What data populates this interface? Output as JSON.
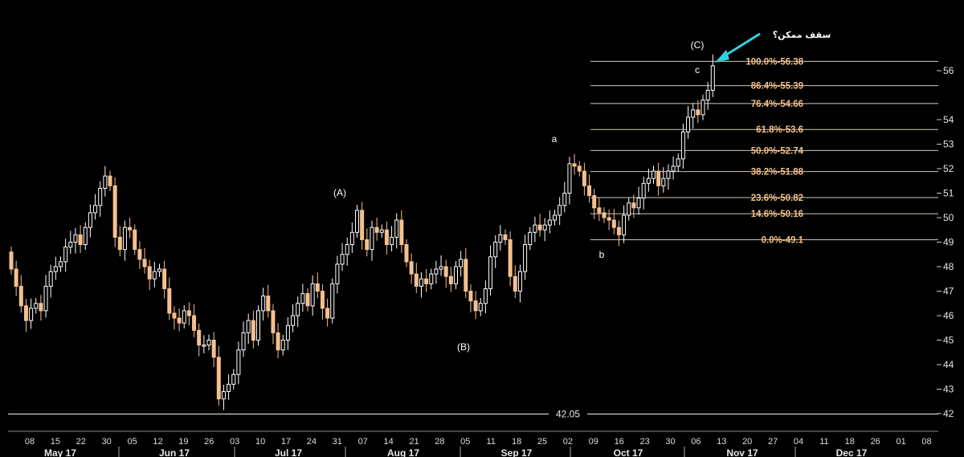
{
  "chart_data": {
    "type": "candlestick",
    "y_axis": {
      "ylim": [
        41.7,
        56.9
      ],
      "ticks": [
        42,
        43,
        44,
        45,
        46,
        47,
        48,
        49,
        50,
        51,
        52,
        53,
        54,
        56
      ],
      "side": "right"
    },
    "x_axis": {
      "day_ticks": [
        "08",
        "15",
        "22",
        "30",
        "05",
        "12",
        "19",
        "26",
        "03",
        "10",
        "17",
        "24",
        "31",
        "07",
        "14",
        "21",
        "28",
        "05",
        "11",
        "18",
        "25",
        "02",
        "09",
        "16",
        "23",
        "30",
        "06",
        "13",
        "20",
        "27",
        "04",
        "11",
        "18",
        "26",
        "01",
        "08"
      ],
      "months": [
        "May 17",
        "Jun 17",
        "Jul 17",
        "Aug 17",
        "Sep 17",
        "Oct 17",
        "Nov 17",
        "Dec 17"
      ]
    },
    "fibonacci_levels": [
      {
        "pct": "100.0%",
        "value": 56.38
      },
      {
        "pct": "86.4%",
        "value": 55.39
      },
      {
        "pct": "76.4%",
        "value": 54.66
      },
      {
        "pct": "61.8%",
        "value": 53.6
      },
      {
        "pct": "50.0%",
        "value": 52.74
      },
      {
        "pct": "38.2%",
        "value": 51.88
      },
      {
        "pct": "23.6%",
        "value": 50.82
      },
      {
        "pct": "14.6%",
        "value": 50.16
      },
      {
        "pct": "0.0%",
        "value": 49.1
      }
    ],
    "horizontal_line": {
      "value": 42.05,
      "label": "42.05"
    },
    "annotations": [
      "(A)",
      "(B)",
      "(C)",
      "a",
      "b",
      "c"
    ],
    "note": "سقف ممکن؟",
    "closes": [
      47.9,
      47.2,
      46.4,
      45.8,
      46.3,
      46.5,
      46.2,
      47.2,
      47.8,
      48.0,
      48.2,
      48.8,
      49.0,
      49.3,
      48.9,
      49.6,
      50.2,
      50.5,
      51.2,
      51.7,
      51.3,
      49.2,
      48.7,
      49.6,
      49.5,
      48.7,
      48.3,
      48.0,
      47.5,
      47.8,
      47.9,
      47.1,
      46.1,
      45.9,
      45.7,
      46.2,
      46.0,
      45.4,
      44.8,
      44.8,
      45.0,
      44.3,
      42.6,
      42.9,
      43.2,
      43.6,
      44.6,
      45.3,
      45.8,
      45.0,
      46.2,
      46.8,
      46.2,
      45.3,
      44.6,
      45.0,
      45.6,
      46.0,
      46.5,
      46.9,
      46.4,
      47.3,
      47.0,
      46.3,
      45.9,
      47.3,
      48.1,
      48.5,
      48.9,
      49.4,
      50.3,
      49.1,
      48.7,
      49.6,
      49.4,
      49.5,
      48.9,
      49.2,
      49.9,
      48.9,
      48.2,
      47.7,
      47.2,
      47.5,
      47.3,
      47.7,
      47.9,
      48.0,
      47.6,
      47.3,
      48.0,
      48.3,
      47.0,
      46.6,
      46.2,
      46.5,
      47.1,
      48.4,
      49.0,
      49.3,
      49.1,
      47.6,
      47.0,
      47.8,
      48.9,
      49.4,
      49.7,
      49.5,
      49.7,
      49.9,
      50.1,
      50.5,
      51.0,
      52.2,
      52.1,
      51.9,
      51.3,
      50.9,
      50.4,
      50.2,
      50.0,
      49.9,
      49.6,
      49.3,
      50.1,
      50.6,
      50.4,
      50.8,
      51.4,
      51.6,
      51.9,
      51.3,
      51.6,
      51.9,
      52.1,
      52.4,
      53.5,
      54.1,
      54.4,
      54.2,
      54.8,
      55.2,
      56.2
    ],
    "bullish_color": "#ffffff",
    "bearish_color": "#f5c08e"
  }
}
